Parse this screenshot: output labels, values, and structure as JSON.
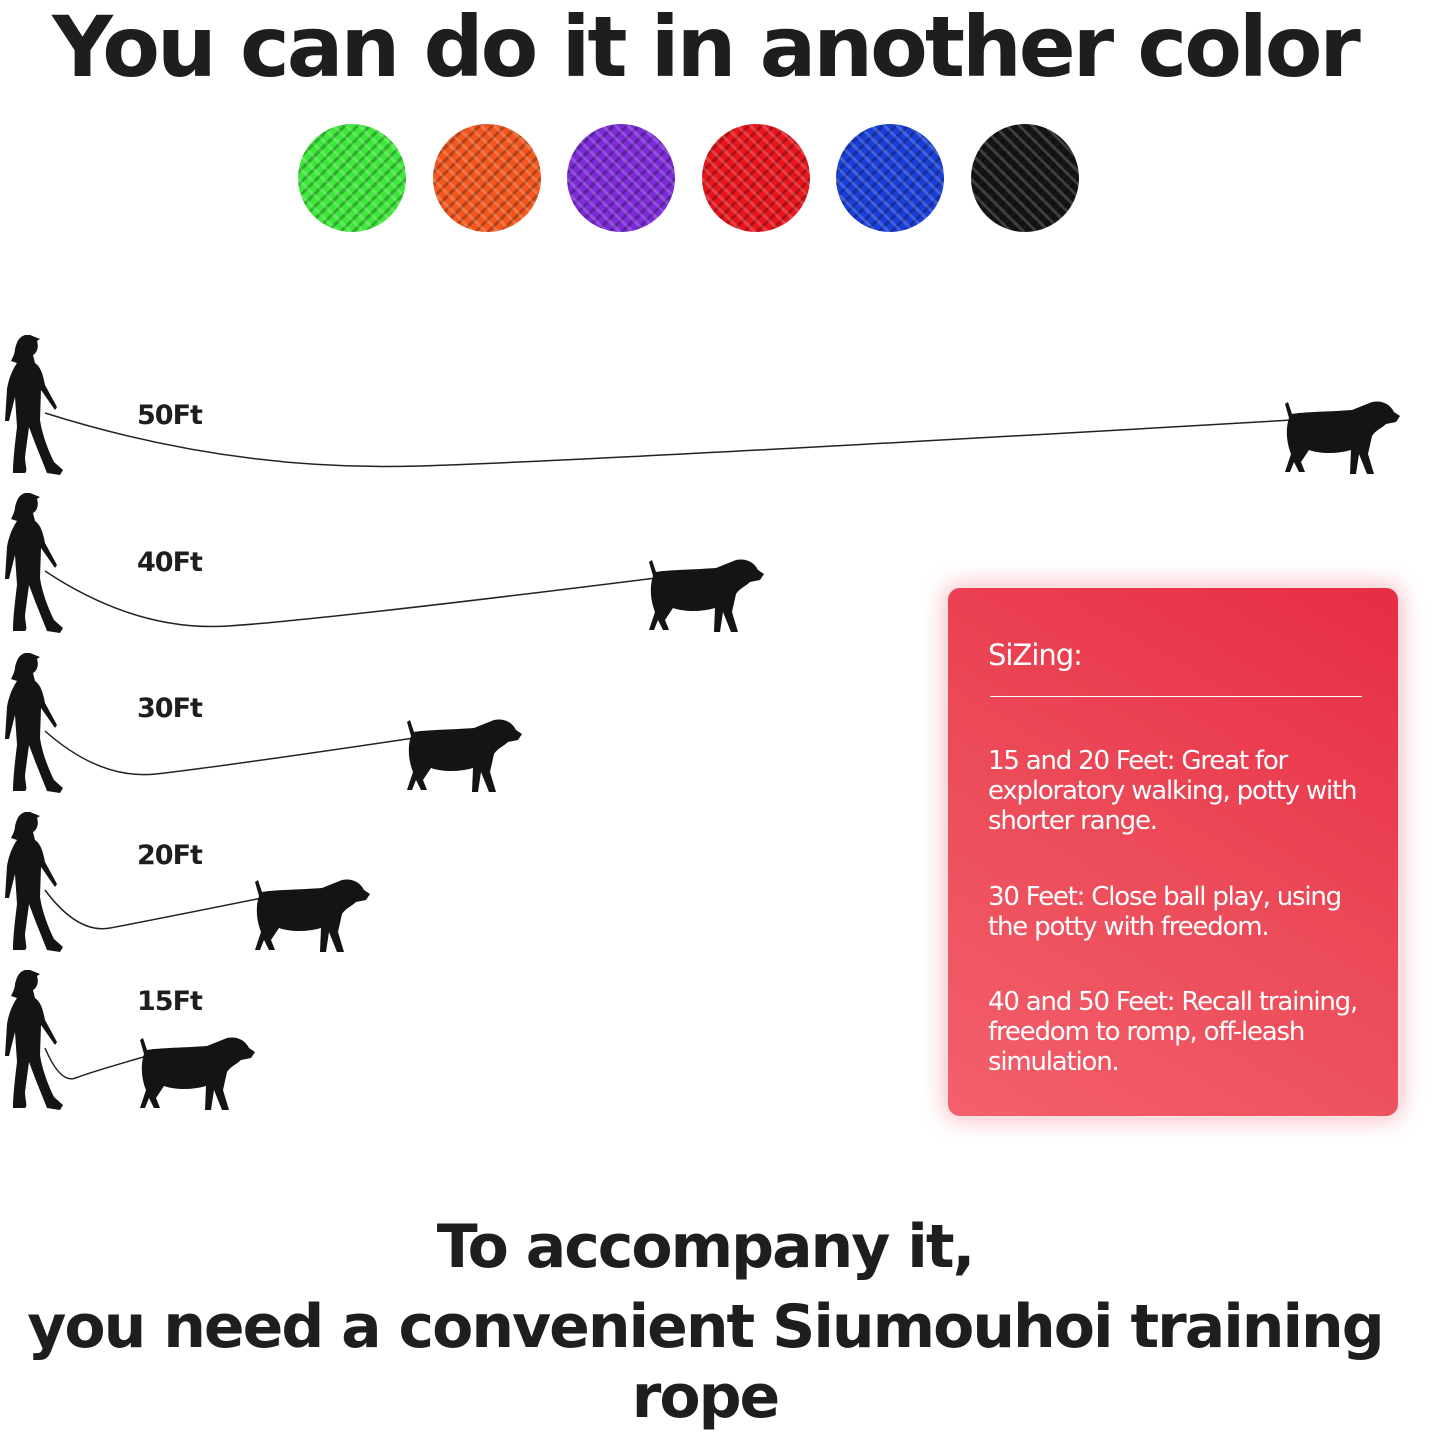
{
  "title": "You can do it in another color",
  "colors": [
    {
      "name": "green",
      "hex": "#3ee83a"
    },
    {
      "name": "orange",
      "hex": "#f4571e"
    },
    {
      "name": "purple",
      "hex": "#7d2bd9"
    },
    {
      "name": "red",
      "hex": "#e9151d"
    },
    {
      "name": "blue",
      "hex": "#1a3fd8"
    },
    {
      "name": "black",
      "hex": "#151515"
    }
  ],
  "lengths": [
    "50Ft",
    "40Ft",
    "30Ft",
    "20Ft",
    "15Ft"
  ],
  "sizing": {
    "heading": "SiZing:",
    "items": [
      "15 and 20 Feet: Great for exploratory walking, potty with shorter range.",
      "30 Feet: Close ball play, using the potty with freedom.",
      "40 and 50 Feet: Recall training, freedom to romp, off-leash simulation."
    ],
    "box_color": "#ec4a58"
  },
  "footer": {
    "line1": "To accompany it,",
    "line2": "you need a convenient Siumouhoi training rope"
  }
}
